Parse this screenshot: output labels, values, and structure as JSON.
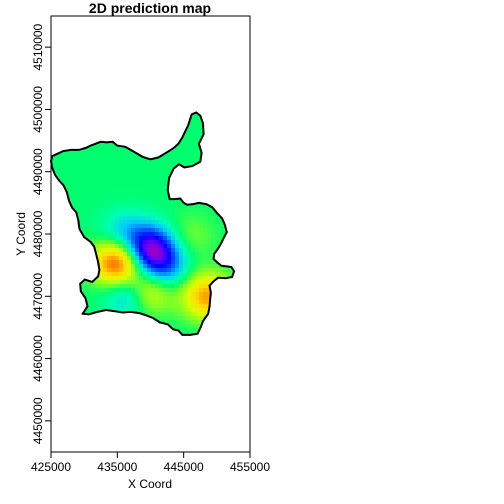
{
  "chart_data": {
    "type": "heatmap",
    "title": "2D prediction map",
    "xlabel": "X Coord",
    "ylabel": "Y Coord",
    "xlim": [
      425000,
      455000
    ],
    "ylim": [
      4445000,
      4515000
    ],
    "xticks": [
      425000,
      435000,
      445000,
      455000
    ],
    "xtick_labels": [
      "425000",
      "435000",
      "445000",
      "455000"
    ],
    "yticks": [
      4450000,
      4460000,
      4470000,
      4480000,
      4490000,
      4500000,
      4510000
    ],
    "ytick_labels": [
      "4450000",
      "4460000",
      "4470000",
      "4480000",
      "4490000",
      "4500000",
      "4510000"
    ],
    "grid": false,
    "legend": "none",
    "colormap": "rainbow (low = violet/blue, middle = green, high = yellow/red)",
    "background_level": 0.5,
    "features": [
      {
        "kind": "high",
        "x": 435000,
        "y": 4475300,
        "level": 0.97
      },
      {
        "kind": "high",
        "x": 439000,
        "y": 4470800,
        "level": 0.96
      },
      {
        "kind": "high",
        "x": 448500,
        "y": 4470000,
        "level": 0.85
      },
      {
        "kind": "high",
        "x": 446000,
        "y": 4479500,
        "level": 0.58
      },
      {
        "kind": "low",
        "x": 440000,
        "y": 4477500,
        "level": 0.05
      },
      {
        "kind": "low",
        "x": 437500,
        "y": 4470500,
        "level": 0.08
      },
      {
        "kind": "low",
        "x": 442000,
        "y": 4474500,
        "level": 0.28
      },
      {
        "kind": "low",
        "x": 436000,
        "y": 4480000,
        "level": 0.35
      }
    ],
    "boundary": [
      [
        425200,
        4492500
      ],
      [
        425800,
        4492800
      ],
      [
        426800,
        4493300
      ],
      [
        428000,
        4493500
      ],
      [
        429200,
        4493500
      ],
      [
        430200,
        4493800
      ],
      [
        431000,
        4494200
      ],
      [
        432500,
        4494800
      ],
      [
        433400,
        4494700
      ],
      [
        434300,
        4494800
      ],
      [
        435000,
        4494200
      ],
      [
        436200,
        4494000
      ],
      [
        437500,
        4493200
      ],
      [
        438800,
        4492400
      ],
      [
        440000,
        4492000
      ],
      [
        441200,
        4492300
      ],
      [
        442600,
        4493200
      ],
      [
        443500,
        4493800
      ],
      [
        444200,
        4494500
      ],
      [
        444800,
        4495500
      ],
      [
        445700,
        4497500
      ],
      [
        446200,
        4499200
      ],
      [
        446900,
        4499500
      ],
      [
        447500,
        4499000
      ],
      [
        447900,
        4497800
      ],
      [
        448000,
        4496000
      ],
      [
        447300,
        4494500
      ],
      [
        447700,
        4493000
      ],
      [
        447500,
        4491600
      ],
      [
        446300,
        4490900
      ],
      [
        445100,
        4490700
      ],
      [
        444300,
        4491200
      ],
      [
        443500,
        4490500
      ],
      [
        442800,
        4489000
      ],
      [
        442600,
        4487000
      ],
      [
        442900,
        4485600
      ],
      [
        443600,
        4485600
      ],
      [
        444500,
        4485700
      ],
      [
        445000,
        4485000
      ],
      [
        445500,
        4484700
      ],
      [
        446400,
        4484800
      ],
      [
        447300,
        4485000
      ],
      [
        448400,
        4484800
      ],
      [
        449300,
        4484300
      ],
      [
        450000,
        4483400
      ],
      [
        450800,
        4482500
      ],
      [
        451200,
        4481500
      ],
      [
        451500,
        4480300
      ],
      [
        451100,
        4479500
      ],
      [
        450700,
        4478600
      ],
      [
        450200,
        4477700
      ],
      [
        449600,
        4476800
      ],
      [
        449500,
        4476000
      ],
      [
        450100,
        4475400
      ],
      [
        450700,
        4474900
      ],
      [
        451500,
        4474800
      ],
      [
        452200,
        4474700
      ],
      [
        452600,
        4474000
      ],
      [
        452300,
        4473100
      ],
      [
        451300,
        4472900
      ],
      [
        450200,
        4473000
      ],
      [
        449500,
        4472400
      ],
      [
        448900,
        4471700
      ],
      [
        449100,
        4470600
      ],
      [
        449000,
        4469600
      ],
      [
        448900,
        4468300
      ],
      [
        448700,
        4467200
      ],
      [
        447900,
        4466000
      ],
      [
        447600,
        4465100
      ],
      [
        447100,
        4464000
      ],
      [
        446000,
        4463800
      ],
      [
        444800,
        4463800
      ],
      [
        444200,
        4464500
      ],
      [
        443400,
        4464700
      ],
      [
        442600,
        4465500
      ],
      [
        441400,
        4465800
      ],
      [
        440400,
        4466500
      ],
      [
        439200,
        4467000
      ],
      [
        438300,
        4467300
      ],
      [
        437000,
        4467500
      ],
      [
        435800,
        4467400
      ],
      [
        434600,
        4467600
      ],
      [
        433300,
        4467800
      ],
      [
        432000,
        4467500
      ],
      [
        430700,
        4467100
      ],
      [
        429800,
        4467200
      ],
      [
        430500,
        4468400
      ],
      [
        430200,
        4469700
      ],
      [
        429500,
        4470800
      ],
      [
        429400,
        4472000
      ],
      [
        430100,
        4472700
      ],
      [
        431200,
        4472300
      ],
      [
        432100,
        4473200
      ],
      [
        432300,
        4474200
      ],
      [
        432100,
        4475500
      ],
      [
        431800,
        4476800
      ],
      [
        431500,
        4478000
      ],
      [
        431000,
        4478700
      ],
      [
        430000,
        4479500
      ],
      [
        429300,
        4480800
      ],
      [
        429100,
        4482300
      ],
      [
        428800,
        4483500
      ],
      [
        428200,
        4484200
      ],
      [
        427700,
        4485400
      ],
      [
        427400,
        4486700
      ],
      [
        426900,
        4487800
      ],
      [
        426200,
        4488600
      ],
      [
        425600,
        4489500
      ],
      [
        425200,
        4490600
      ],
      [
        425000,
        4491700
      ]
    ]
  }
}
